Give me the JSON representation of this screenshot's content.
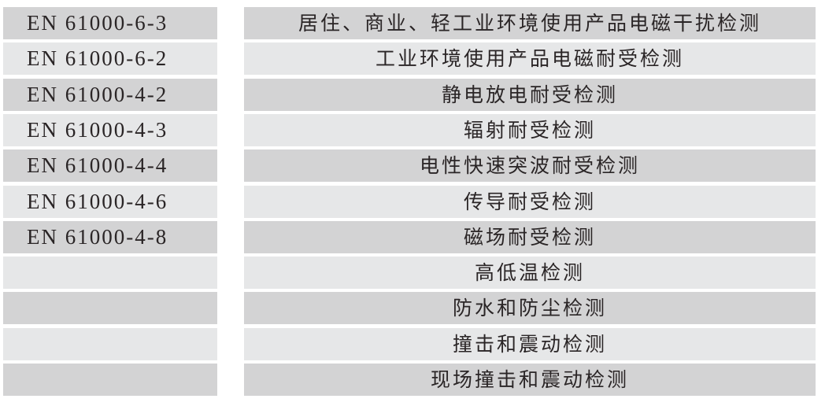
{
  "rows": [
    {
      "standard": "EN 61000-6-3",
      "test": "居住、商业、轻工业环境使用产品电磁干扰检测"
    },
    {
      "standard": "EN 61000-6-2",
      "test": "工业环境使用产品电磁耐受检测"
    },
    {
      "standard": "EN 61000-4-2",
      "test": "静电放电耐受检测"
    },
    {
      "standard": "EN 61000-4-3",
      "test": "辐射耐受检测"
    },
    {
      "standard": "EN 61000-4-4",
      "test": "电性快速突波耐受检测"
    },
    {
      "standard": "EN 61000-4-6",
      "test": "传导耐受检测"
    },
    {
      "standard": "EN 61000-4-8",
      "test": "磁场耐受检测"
    },
    {
      "standard": "",
      "test": "高低温检测"
    },
    {
      "standard": "",
      "test": "防水和防尘检测"
    },
    {
      "standard": "",
      "test": "撞击和震动检测"
    },
    {
      "standard": "",
      "test": "现场撞击和震动检测"
    }
  ],
  "colors": {
    "row_dark": "#d3d3d4",
    "row_light": "#e6e7e8",
    "text": "#2a2526"
  }
}
